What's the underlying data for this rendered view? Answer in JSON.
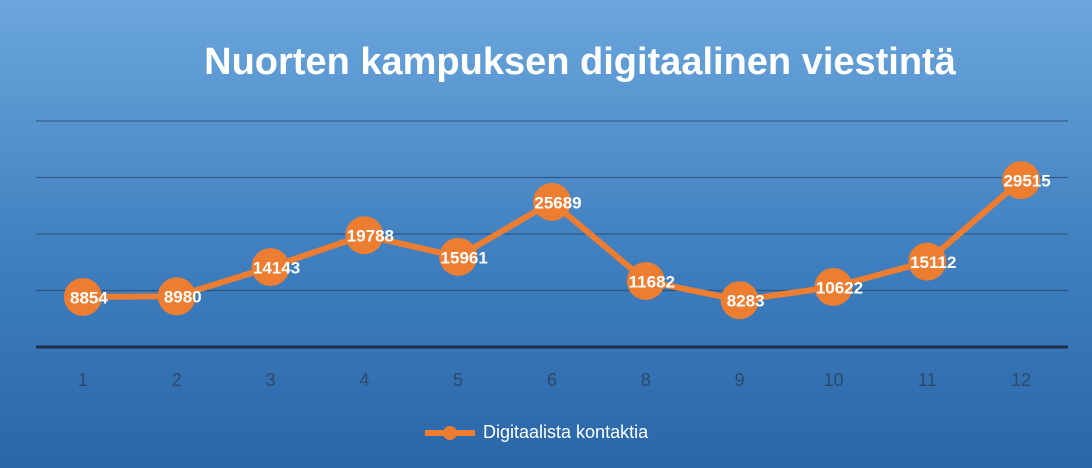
{
  "chart_data": {
    "type": "line",
    "title": "Nuorten kampuksen digitaalinen viestintä",
    "categories": [
      "1",
      "2",
      "3",
      "4",
      "5",
      "6",
      "8",
      "9",
      "10",
      "11",
      "12"
    ],
    "series": [
      {
        "name": "Digitaalista kontaktia",
        "color": "#ed7d31",
        "values": [
          8854,
          8980,
          14143,
          19788,
          15961,
          25689,
          11682,
          8283,
          10622,
          15112,
          29515
        ]
      }
    ],
    "ylim": [
      0,
      40000
    ],
    "yticks": [
      0,
      10000,
      20000,
      30000,
      40000
    ],
    "grid": true,
    "legend": "bottom"
  }
}
